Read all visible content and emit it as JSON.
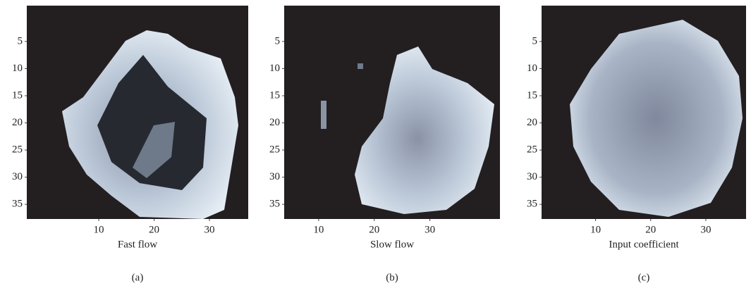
{
  "chart_data": [
    {
      "type": "heatmap",
      "xlabel": "Fast flow",
      "caption": "(a)",
      "xlim": [
        -3,
        37
      ],
      "ylim": [
        -1.6,
        37.7
      ],
      "xticks": [
        10,
        20,
        30
      ],
      "yticks": [
        5,
        10,
        15,
        20,
        25,
        30,
        35
      ]
    },
    {
      "type": "heatmap",
      "xlabel": "Slow flow",
      "caption": "(b)",
      "xlim": [
        3.8,
        42.6
      ],
      "ylim": [
        -1.6,
        37.7
      ],
      "xticks": [
        10,
        20,
        30
      ],
      "yticks": [
        5,
        10,
        15,
        20,
        25,
        30,
        35
      ]
    },
    {
      "type": "heatmap",
      "xlabel": "Input coefficient",
      "caption": "(c)",
      "xlim": [
        0.2,
        37.3
      ],
      "ylim": [
        -1.6,
        37.7
      ],
      "xticks": [
        10,
        20,
        30
      ],
      "yticks": [
        5,
        10,
        15,
        20,
        25,
        30,
        35
      ]
    }
  ]
}
